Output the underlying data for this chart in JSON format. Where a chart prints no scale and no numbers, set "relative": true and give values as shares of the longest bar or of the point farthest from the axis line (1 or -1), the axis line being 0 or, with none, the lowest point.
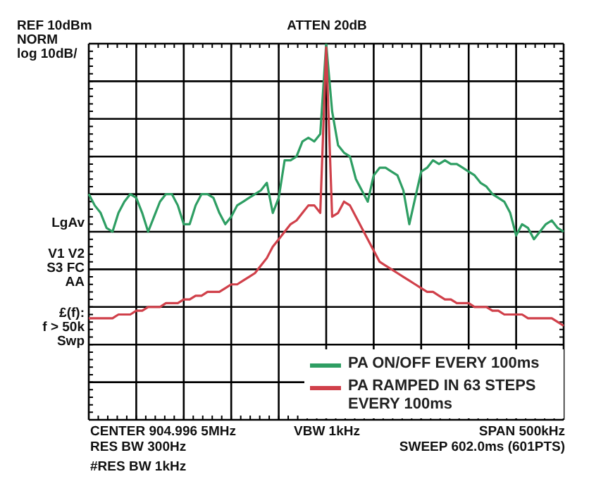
{
  "chart_data": {
    "type": "line",
    "relative": true,
    "grid": true,
    "legend": "bottom right",
    "marker": "none",
    "line_style": "solid",
    "categories": [
      null,
      null,
      null,
      null,
      null,
      null,
      null,
      null,
      null,
      null,
      null,
      null,
      null,
      null,
      null,
      null,
      null,
      null,
      null,
      null,
      null,
      null,
      null,
      null,
      null,
      null,
      null,
      null,
      null,
      null,
      null,
      null,
      null,
      null,
      null,
      null,
      null,
      null,
      null,
      null,
      null,
      null,
      null,
      null,
      null,
      null,
      null,
      null,
      null,
      null,
      null,
      null,
      null,
      null,
      null,
      null,
      null,
      null,
      null,
      null,
      null,
      null,
      null,
      null,
      null,
      null,
      null,
      null,
      null,
      null,
      null,
      null,
      null,
      null,
      null,
      null,
      null,
      null,
      null,
      null,
      null
    ],
    "series": [
      {
        "name": "PA ON/OFF EVERY 100ms",
        "color": "#2e9e63",
        "values": [
          0.6,
          0.57,
          0.55,
          0.51,
          0.5,
          0.55,
          0.58,
          0.6,
          0.59,
          0.55,
          0.5,
          0.54,
          0.58,
          0.6,
          0.6,
          0.57,
          0.52,
          0.52,
          0.57,
          0.6,
          0.6,
          0.59,
          0.55,
          0.52,
          0.54,
          0.57,
          0.58,
          0.59,
          0.6,
          0.61,
          0.63,
          0.55,
          0.59,
          0.69,
          0.69,
          0.7,
          0.74,
          0.75,
          0.74,
          0.76,
          1.0,
          0.82,
          0.73,
          0.71,
          0.7,
          0.64,
          0.61,
          0.58,
          0.65,
          0.67,
          0.67,
          0.66,
          0.65,
          0.61,
          0.52,
          0.59,
          0.66,
          0.67,
          0.69,
          0.68,
          0.69,
          0.68,
          0.68,
          0.67,
          0.66,
          0.65,
          0.63,
          0.62,
          0.6,
          0.59,
          0.58,
          0.55,
          0.49,
          0.52,
          0.51,
          0.48,
          0.5,
          0.52,
          0.53,
          0.51,
          0.5
        ]
      },
      {
        "name": "PA RAMPED IN 63 STEPS EVERY 100ms",
        "color": "#d0404a",
        "values": [
          0.27,
          0.27,
          0.27,
          0.27,
          0.27,
          0.28,
          0.28,
          0.28,
          0.29,
          0.29,
          0.3,
          0.3,
          0.3,
          0.31,
          0.31,
          0.31,
          0.32,
          0.32,
          0.33,
          0.33,
          0.34,
          0.34,
          0.34,
          0.35,
          0.36,
          0.36,
          0.37,
          0.38,
          0.39,
          0.41,
          0.43,
          0.46,
          0.48,
          0.5,
          0.52,
          0.53,
          0.55,
          0.57,
          0.57,
          0.55,
          0.99,
          0.54,
          0.55,
          0.58,
          0.57,
          0.54,
          0.51,
          0.48,
          0.45,
          0.42,
          0.41,
          0.4,
          0.39,
          0.38,
          0.37,
          0.36,
          0.35,
          0.34,
          0.34,
          0.33,
          0.32,
          0.32,
          0.31,
          0.31,
          0.31,
          0.3,
          0.3,
          0.3,
          0.29,
          0.29,
          0.28,
          0.28,
          0.28,
          0.28,
          0.27,
          0.27,
          0.27,
          0.27,
          0.27,
          0.26,
          0.25
        ]
      }
    ],
    "annotations": [
      "REF 10dBm",
      "NORM",
      "log 10dB/",
      "ATTEN 20dB",
      "LgAv",
      "V1 V2",
      "S3 FC",
      "AA",
      "£(f):",
      "f > 50k",
      "Swp",
      "CENTER 904.996 5MHz",
      "RES BW 300Hz",
      "#RES BW 1kHz",
      "VBW 1kHz",
      "SPAN 500kHz",
      "SWEEP 602.0ms (601PTS)"
    ]
  }
}
